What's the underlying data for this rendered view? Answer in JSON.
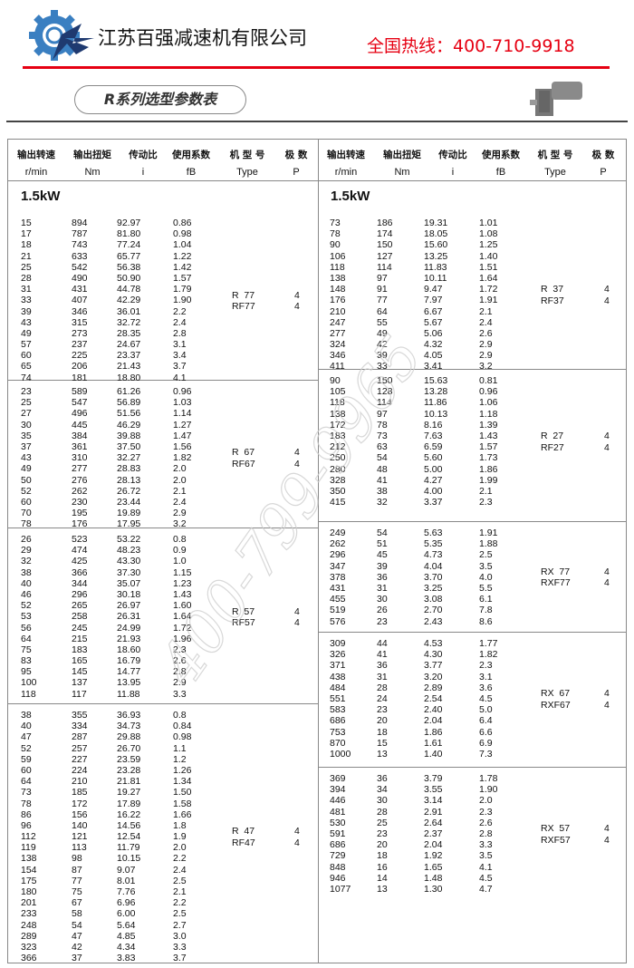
{
  "header": {
    "company": "江苏百强减速机有限公司",
    "hotline": "全国热线：400-710-9918",
    "title": "R系列选型参数表",
    "watermark": "400-799-9965",
    "accent": "#e60012",
    "logo_color": "#3a7fc1"
  },
  "columns": [
    {
      "cn": "输出转速",
      "en": "r/min"
    },
    {
      "cn": "输出扭矩",
      "en": "Nm"
    },
    {
      "cn": "传动比",
      "en": "i"
    },
    {
      "cn": "使用系数",
      "en": "fB"
    },
    {
      "cn": "机 型 号",
      "en": "Type"
    },
    {
      "cn": "极  数",
      "en": "P"
    }
  ],
  "left": [
    {
      "power": "1.5kW",
      "types": [
        "R  77",
        "RF77"
      ],
      "poles": [
        "4",
        "4"
      ],
      "rows": [
        [
          "15",
          "894",
          "92.97",
          "0.86"
        ],
        [
          "17",
          "787",
          "81.80",
          "0.98"
        ],
        [
          "18",
          "743",
          "77.24",
          "1.04"
        ],
        [
          "21",
          "633",
          "65.77",
          "1.22"
        ],
        [
          "25",
          "542",
          "56.38",
          "1.42"
        ],
        [
          "28",
          "490",
          "50.90",
          "1.57"
        ],
        [
          "31",
          "431",
          "44.78",
          "1.79"
        ],
        [
          "33",
          "407",
          "42.29",
          "1.90"
        ],
        [
          "39",
          "346",
          "36.01",
          "2.2"
        ],
        [
          "43",
          "315",
          "32.72",
          "2.4"
        ],
        [
          "49",
          "273",
          "28.35",
          "2.8"
        ],
        [
          "57",
          "237",
          "24.67",
          "3.1"
        ],
        [
          "60",
          "225",
          "23.37",
          "3.4"
        ],
        [
          "65",
          "206",
          "21.43",
          "3.7"
        ],
        [
          "74",
          "181",
          "18.80",
          "4.1"
        ]
      ]
    },
    {
      "types": [
        "R  67",
        "RF67"
      ],
      "poles": [
        "4",
        "4"
      ],
      "rows": [
        [
          "23",
          "589",
          "61.26",
          "0.96"
        ],
        [
          "25",
          "547",
          "56.89",
          "1.03"
        ],
        [
          "27",
          "496",
          "51.56",
          "1.14"
        ],
        [
          "30",
          "445",
          "46.29",
          "1.27"
        ],
        [
          "35",
          "384",
          "39.88",
          "1.47"
        ],
        [
          "37",
          "361",
          "37.50",
          "1.56"
        ],
        [
          "43",
          "310",
          "32.27",
          "1.82"
        ],
        [
          "49",
          "277",
          "28.83",
          "2.0"
        ],
        [
          "50",
          "276",
          "28.13",
          "2.0"
        ],
        [
          "52",
          "262",
          "26.72",
          "2.1"
        ],
        [
          "60",
          "230",
          "23.44",
          "2.4"
        ],
        [
          "70",
          "195",
          "19.89",
          "2.9"
        ],
        [
          "78",
          "176",
          "17.95",
          "3.2"
        ]
      ]
    },
    {
      "types": [
        "R  57",
        "RF57"
      ],
      "poles": [
        "4",
        "4"
      ],
      "rows": [
        [
          "26",
          "523",
          "53.22",
          "0.8"
        ],
        [
          "29",
          "474",
          "48.23",
          "0.9"
        ],
        [
          "32",
          "425",
          "43.30",
          "1.0"
        ],
        [
          "38",
          "366",
          "37.30",
          "1.15"
        ],
        [
          "40",
          "344",
          "35.07",
          "1.23"
        ],
        [
          "46",
          "296",
          "30.18",
          "1.43"
        ],
        [
          "52",
          "265",
          "26.97",
          "1.60"
        ],
        [
          "53",
          "258",
          "26.31",
          "1.64"
        ],
        [
          "56",
          "245",
          "24.99",
          "1.72"
        ],
        [
          "64",
          "215",
          "21.93",
          "1.96"
        ],
        [
          "75",
          "183",
          "18.60",
          "2.3"
        ],
        [
          "83",
          "165",
          "16.79",
          "2.6"
        ],
        [
          "95",
          "145",
          "14.77",
          "2.8"
        ],
        [
          "100",
          "137",
          "13.95",
          "2.9"
        ],
        [
          "118",
          "117",
          "11.88",
          "3.3"
        ]
      ]
    },
    {
      "types": [
        "R  47",
        "RF47"
      ],
      "poles": [
        "4",
        "4"
      ],
      "rows": [
        [
          "38",
          "355",
          "36.93",
          "0.8"
        ],
        [
          "40",
          "334",
          "34.73",
          "0.84"
        ],
        [
          "47",
          "287",
          "29.88",
          "0.98"
        ],
        [
          "52",
          "257",
          "26.70",
          "1.1"
        ],
        [
          "59",
          "227",
          "23.59",
          "1.2"
        ],
        [
          "60",
          "224",
          "23.28",
          "1.26"
        ],
        [
          "64",
          "210",
          "21.81",
          "1.34"
        ],
        [
          "73",
          "185",
          "19.27",
          "1.50"
        ],
        [
          "78",
          "172",
          "17.89",
          "1.58"
        ],
        [
          "86",
          "156",
          "16.22",
          "1.66"
        ],
        [
          "96",
          "140",
          "14.56",
          "1.8"
        ],
        [
          "112",
          "121",
          "12.54",
          "1.9"
        ],
        [
          "119",
          "113",
          "11.79",
          "2.0"
        ],
        [
          "138",
          "98",
          "10.15",
          "2.2"
        ],
        [
          "154",
          "87",
          "9.07",
          "2.4"
        ],
        [
          "175",
          "77",
          "8.01",
          "2.5"
        ],
        [
          "180",
          "75",
          "7.76",
          "2.1"
        ],
        [
          "201",
          "67",
          "6.96",
          "2.2"
        ],
        [
          "233",
          "58",
          "6.00",
          "2.5"
        ],
        [
          "248",
          "54",
          "5.64",
          "2.7"
        ],
        [
          "289",
          "47",
          "4.85",
          "3.0"
        ],
        [
          "323",
          "42",
          "4.34",
          "3.3"
        ],
        [
          "366",
          "37",
          "3.83",
          "3.7"
        ]
      ]
    }
  ],
  "right": [
    {
      "power": "1.5kW",
      "types": [
        "R  37",
        "RF37"
      ],
      "poles": [
        "4",
        "4"
      ],
      "rows": [
        [
          "73",
          "186",
          "19.31",
          "1.01"
        ],
        [
          "78",
          "174",
          "18.05",
          "1.08"
        ],
        [
          "90",
          "150",
          "15.60",
          "1.25"
        ],
        [
          "106",
          "127",
          "13.25",
          "1.40"
        ],
        [
          "118",
          "114",
          "11.83",
          "1.51"
        ],
        [
          "138",
          "97",
          "10.11",
          "1.64"
        ],
        [
          "148",
          "91",
          "9.47",
          "1.72"
        ],
        [
          "176",
          "77",
          "7.97",
          "1.91"
        ],
        [
          "210",
          "64",
          "6.67",
          "2.1"
        ],
        [
          "247",
          "55",
          "5.67",
          "2.4"
        ],
        [
          "277",
          "49",
          "5.06",
          "2.6"
        ],
        [
          "324",
          "42",
          "4.32",
          "2.9"
        ],
        [
          "346",
          "39",
          "4.05",
          "2.9"
        ],
        [
          "411",
          "33",
          "3.41",
          "3.2"
        ]
      ]
    },
    {
      "types": [
        "R  27",
        "RF27"
      ],
      "poles": [
        "4",
        "4"
      ],
      "rows": [
        [
          "90",
          "150",
          "15.63",
          "0.81"
        ],
        [
          "105",
          "128",
          "13.28",
          "0.96"
        ],
        [
          "118",
          "114",
          "11.86",
          "1.06"
        ],
        [
          "138",
          "97",
          "10.13",
          "1.18"
        ],
        [
          "172",
          "78",
          "8.16",
          "1.39"
        ],
        [
          "183",
          "73",
          "7.63",
          "1.43"
        ],
        [
          "212",
          "63",
          "6.59",
          "1.57"
        ],
        [
          "250",
          "54",
          "5.60",
          "1.73"
        ],
        [
          "280",
          "48",
          "5.00",
          "1.86"
        ],
        [
          "328",
          "41",
          "4.27",
          "1.99"
        ],
        [
          "350",
          "38",
          "4.00",
          "2.1"
        ],
        [
          "415",
          "32",
          "3.37",
          "2.3"
        ]
      ]
    },
    {
      "types": [
        "RX  77",
        "RXF77"
      ],
      "poles": [
        "4",
        "4"
      ],
      "rows": [
        [
          "249",
          "54",
          "5.63",
          "1.91"
        ],
        [
          "262",
          "51",
          "5.35",
          "1.88"
        ],
        [
          "296",
          "45",
          "4.73",
          "2.5"
        ],
        [
          "347",
          "39",
          "4.04",
          "3.5"
        ],
        [
          "378",
          "36",
          "3.70",
          "4.0"
        ],
        [
          "431",
          "31",
          "3.25",
          "5.5"
        ],
        [
          "455",
          "30",
          "3.08",
          "6.1"
        ],
        [
          "519",
          "26",
          "2.70",
          "7.8"
        ],
        [
          "576",
          "23",
          "2.43",
          "8.6"
        ]
      ]
    },
    {
      "types": [
        "RX  67",
        "RXF67"
      ],
      "poles": [
        "4",
        "4"
      ],
      "rows": [
        [
          "309",
          "44",
          "4.53",
          "1.77"
        ],
        [
          "326",
          "41",
          "4.30",
          "1.82"
        ],
        [
          "371",
          "36",
          "3.77",
          "2.3"
        ],
        [
          "438",
          "31",
          "3.20",
          "3.1"
        ],
        [
          "484",
          "28",
          "2.89",
          "3.6"
        ],
        [
          "551",
          "24",
          "2.54",
          "4.5"
        ],
        [
          "583",
          "23",
          "2.40",
          "5.0"
        ],
        [
          "686",
          "20",
          "2.04",
          "6.4"
        ],
        [
          "753",
          "18",
          "1.86",
          "6.6"
        ],
        [
          "870",
          "15",
          "1.61",
          "6.9"
        ],
        [
          "1000",
          "13",
          "1.40",
          "7.3"
        ]
      ]
    },
    {
      "types": [
        "RX  57",
        "RXF57"
      ],
      "poles": [
        "4",
        "4"
      ],
      "rows": [
        [
          "369",
          "36",
          "3.79",
          "1.78"
        ],
        [
          "394",
          "34",
          "3.55",
          "1.90"
        ],
        [
          "446",
          "30",
          "3.14",
          "2.0"
        ],
        [
          "481",
          "28",
          "2.91",
          "2.3"
        ],
        [
          "530",
          "25",
          "2.64",
          "2.6"
        ],
        [
          "591",
          "23",
          "2.37",
          "2.8"
        ],
        [
          "686",
          "20",
          "2.04",
          "3.3"
        ],
        [
          "729",
          "18",
          "1.92",
          "3.5"
        ],
        [
          "848",
          "16",
          "1.65",
          "4.1"
        ],
        [
          "946",
          "14",
          "1.48",
          "4.5"
        ],
        [
          "1077",
          "13",
          "1.30",
          "4.7"
        ]
      ]
    }
  ]
}
